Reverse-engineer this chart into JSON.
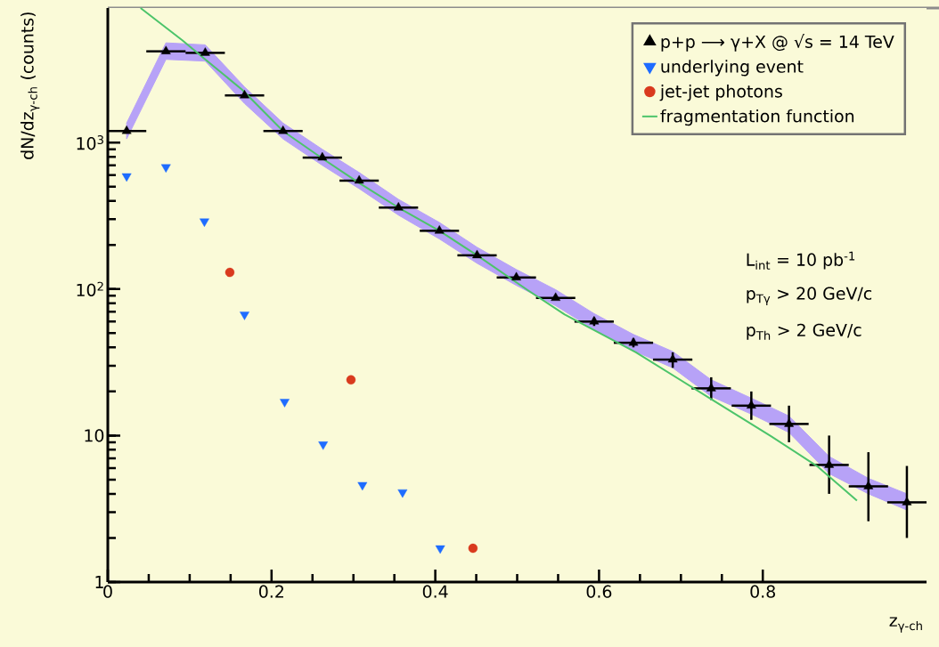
{
  "chart_data": {
    "type": "scatter",
    "xlabel": "z$_{γ-ch}$",
    "ylabel": "dN/dz$_{γ-ch}$ (counts)",
    "xlim": [
      0,
      1.0
    ],
    "ylim": [
      1,
      8300
    ],
    "xticks": [
      0,
      0.2,
      0.4,
      0.6,
      0.8
    ],
    "yticks": [
      1,
      10,
      {
        "value": 100,
        "label": "10$^{2}$"
      },
      {
        "value": 1000,
        "label": "10$^{3}$"
      }
    ],
    "log": "y",
    "legend": "top right",
    "annotations": [
      "L$_{int}$ = 10 pb$^{-1}$",
      "p$_{Tγ}$ > 20 GeV/c",
      "p$_{Th}$ > 2 GeV/c"
    ],
    "series": [
      {
        "name": "p+p ⟶ γ+X @ √s = 14 TeV",
        "marker": "triangle",
        "color": "#000000",
        "x": [
          0.023,
          0.071,
          0.119,
          0.167,
          0.214,
          0.262,
          0.307,
          0.355,
          0.405,
          0.451,
          0.499,
          0.547,
          0.594,
          0.642,
          0.69,
          0.737,
          0.786,
          0.832,
          0.881,
          0.929,
          0.976
        ],
        "values": [
          1200,
          4200,
          4100,
          2100,
          1200,
          790,
          550,
          360,
          250,
          170,
          120,
          87,
          60,
          43,
          33,
          21,
          16,
          12,
          6.3,
          4.5,
          3.5
        ],
        "errors": [
          null,
          null,
          null,
          null,
          null,
          null,
          null,
          null,
          null,
          null,
          null,
          null,
          [
            56,
            64
          ],
          [
            40,
            46
          ],
          [
            29,
            37
          ],
          [
            17.5,
            25
          ],
          [
            12.8,
            20
          ],
          [
            9,
            16
          ],
          [
            4,
            10
          ],
          [
            2.6,
            7.7
          ],
          [
            2,
            6.2
          ]
        ],
        "xerrors": [
          0.024,
          0.024,
          0.024,
          0.024,
          0.024,
          0.024,
          0.024,
          0.024,
          0.024,
          0.024,
          0.024,
          0.024,
          0.024,
          0.024,
          0.024,
          0.024,
          0.024,
          0.024,
          0.024,
          0.024,
          0.024
        ],
        "lower": [
          1060,
          3700,
          3600,
          1850,
          1060,
          700,
          485,
          320,
          220,
          150,
          106,
          77,
          53,
          38,
          29,
          18.5,
          14,
          10.5,
          5.5,
          4,
          3.1
        ],
        "upper": [
          1360,
          4800,
          4650,
          2400,
          1360,
          900,
          625,
          410,
          285,
          193,
          136,
          99,
          68,
          49,
          37.5,
          24,
          18,
          13.6,
          7.2,
          5.1,
          4
        ]
      },
      {
        "name": "underlying event",
        "marker": "triangle down",
        "color": "#1e6cff",
        "x": [
          0.023,
          0.071,
          0.118,
          0.167,
          0.216,
          0.263,
          0.311,
          0.36,
          0.406
        ],
        "values": [
          590,
          680,
          290,
          67,
          17,
          8.7,
          4.6,
          4.1,
          1.7
        ]
      },
      {
        "name": "jet-jet photons",
        "marker": "circle",
        "color": "#d93a1e",
        "x": [
          0.149,
          0.297,
          0.446
        ],
        "values": [
          130,
          24,
          1.7
        ]
      },
      {
        "name": "fragmentation function",
        "type": "line",
        "marker": "none",
        "color": "#4cc46a",
        "x": [
          0.04,
          0.091,
          0.119,
          0.164,
          0.214,
          0.262,
          0.307,
          0.355,
          0.405,
          0.451,
          0.512,
          0.558,
          0.645,
          0.735,
          0.81,
          0.866,
          0.915
        ],
        "values": [
          8300,
          5000,
          3700,
          2300,
          1200,
          780,
          530,
          360,
          250,
          170,
          99,
          67,
          37,
          18,
          9.9,
          6.2,
          3.6
        ]
      }
    ]
  }
}
